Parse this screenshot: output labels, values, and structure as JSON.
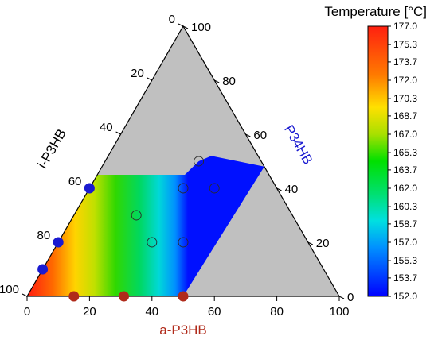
{
  "chart_data": {
    "type": "ternary-contour",
    "axes": {
      "bottom": {
        "label": "a-P3HB",
        "ticks": [
          "0",
          "20",
          "40",
          "60",
          "80",
          "100"
        ],
        "color": "#b02a1a"
      },
      "left": {
        "label": "i-P3HB",
        "ticks": [
          "0",
          "20",
          "40",
          "60",
          "80",
          "100"
        ],
        "color": "#000000"
      },
      "right": {
        "label": "P34HB",
        "ticks": [
          "0",
          "20",
          "40",
          "60",
          "80",
          "100"
        ],
        "color": "#1a1ad0"
      }
    },
    "colorbar": {
      "title": "Temperature [°C]",
      "min": 152.0,
      "max": 177.0,
      "ticks": [
        "177.0",
        "175.3",
        "173.7",
        "172.0",
        "170.3",
        "168.7",
        "167.0",
        "165.3",
        "163.7",
        "162.0",
        "160.3",
        "158.7",
        "157.0",
        "155.3",
        "153.7",
        "152.0"
      ]
    },
    "region_background": "#c0c0c0",
    "points": [
      {
        "a": 0,
        "i": 60,
        "p": 40,
        "temp": 167.0,
        "color": "#1a1ad0"
      },
      {
        "a": 0,
        "i": 80,
        "p": 20,
        "temp": 167.0,
        "color": "#1a1ad0"
      },
      {
        "a": 0,
        "i": 90,
        "p": 10,
        "temp": 167.0,
        "color": "#1a1ad0"
      },
      {
        "a": 30,
        "i": 50,
        "p": 20,
        "temp": 167.5
      },
      {
        "a": 40,
        "i": 40,
        "p": 20,
        "temp": 166.0
      },
      {
        "a": 30,
        "i": 30,
        "p": 40,
        "temp": 167.5
      },
      {
        "a": 40,
        "i": 20,
        "p": 40,
        "temp": 166.5
      },
      {
        "a": 20,
        "i": 50,
        "p": 30,
        "temp": 170.0
      },
      {
        "a": 30,
        "i": 20,
        "p": 50,
        "temp": 168.0
      },
      {
        "a": 15,
        "i": 85,
        "p": 0,
        "temp": 177.0,
        "color": "#b02a1a"
      },
      {
        "a": 31,
        "i": 69,
        "p": 0,
        "temp": 175.5,
        "color": "#b02a1a"
      },
      {
        "a": 50,
        "i": 50,
        "p": 0,
        "temp": 153.0,
        "color": "#b02a1a"
      }
    ]
  }
}
